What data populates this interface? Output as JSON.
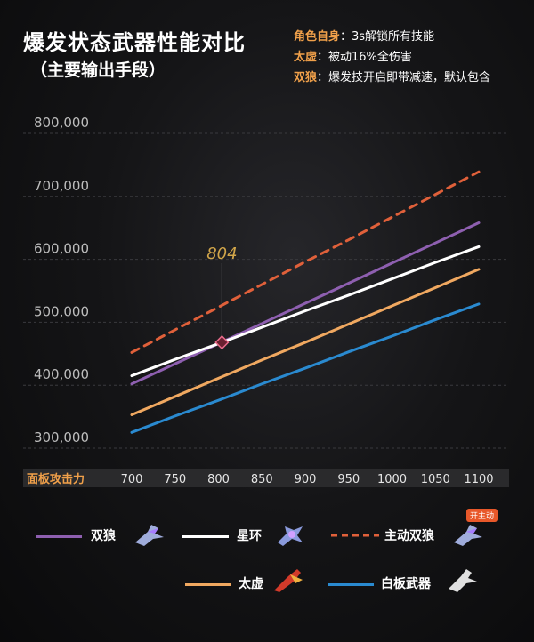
{
  "header": {
    "title": "爆发状态武器性能对比",
    "subtitle": "（主要输出手段）"
  },
  "notes": [
    {
      "key": "角色自身",
      "value": "：3s解锁所有技能"
    },
    {
      "key": "太虚",
      "value": "：被动16%全伤害"
    },
    {
      "key": "双狼",
      "value": "：爆发技开启即带减速，默认包含"
    }
  ],
  "legend_badge": "开主动",
  "chart_data": {
    "type": "line",
    "title": "爆发状态武器性能对比",
    "subtitle": "（主要输出手段）",
    "xlabel": "面板攻击力",
    "ylabel": "",
    "x": [
      700,
      750,
      800,
      850,
      900,
      950,
      1000,
      1050,
      1100
    ],
    "x_tick_labels": [
      "700",
      "750",
      "800",
      "850",
      "900",
      "950",
      "1000",
      "1050",
      "1100"
    ],
    "xlim": [
      700,
      1100
    ],
    "ylim": [
      300000,
      800000
    ],
    "y_ticks": [
      300000,
      400000,
      500000,
      600000,
      700000,
      800000
    ],
    "y_tick_labels": [
      "300,000",
      "400,000",
      "500,000",
      "600,000",
      "700,000",
      "800,000"
    ],
    "grid": true,
    "series": [
      {
        "name": "双狼",
        "color": "#8e5fb0",
        "dashed": false,
        "values": [
          402000,
          434000,
          466000,
          498000,
          530000,
          562000,
          594000,
          626000,
          658000
        ]
      },
      {
        "name": "星环",
        "color": "#ffffff",
        "dashed": false,
        "values": [
          415000,
          441000,
          466000,
          492000,
          518000,
          543000,
          569000,
          595000,
          620000
        ]
      },
      {
        "name": "主动双狼",
        "color": "#e0603a",
        "dashed": true,
        "values": [
          452000,
          488000,
          524000,
          560000,
          596000,
          631000,
          667000,
          703000,
          739000
        ]
      },
      {
        "name": "太虚",
        "color": "#f0a860",
        "dashed": false,
        "values": [
          353000,
          382000,
          411000,
          440000,
          468000,
          497000,
          526000,
          555000,
          584000
        ]
      },
      {
        "name": "白板武器",
        "color": "#2a8ad0",
        "dashed": false,
        "values": [
          325000,
          351000,
          376000,
          402000,
          427000,
          453000,
          478000,
          504000,
          529000
        ]
      }
    ],
    "annotations": [
      {
        "text": "804",
        "x": 804,
        "y": 468000
      }
    ],
    "legend_position": "bottom"
  }
}
